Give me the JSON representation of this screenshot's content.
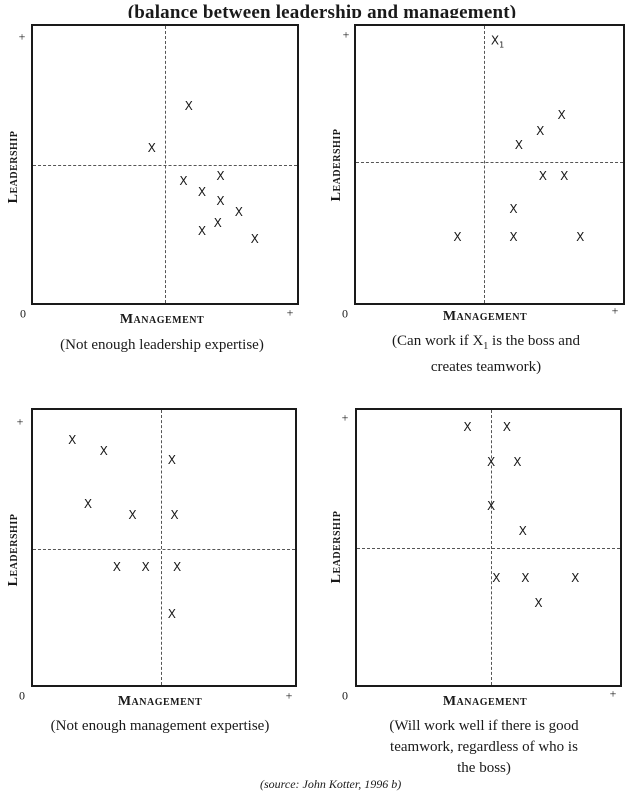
{
  "title": "(balance between leadership and management)",
  "source": "(source: John Kotter, 1996 b)",
  "axes": {
    "y_label": "Leadership",
    "x_label": "Management",
    "origin": "0",
    "plus": "+"
  },
  "point_mark": "X",
  "boss_subscript": "1",
  "panels": [
    {
      "caption": [
        "(Not enough leadership expertise)"
      ],
      "points": [
        {
          "mx": 0.45,
          "ld": 0.56
        },
        {
          "mx": 0.59,
          "ld": 0.71
        },
        {
          "mx": 0.57,
          "ld": 0.44
        },
        {
          "mx": 0.64,
          "ld": 0.4
        },
        {
          "mx": 0.71,
          "ld": 0.46
        },
        {
          "mx": 0.71,
          "ld": 0.37
        },
        {
          "mx": 0.78,
          "ld": 0.33
        },
        {
          "mx": 0.7,
          "ld": 0.29
        },
        {
          "mx": 0.64,
          "ld": 0.26
        },
        {
          "mx": 0.84,
          "ld": 0.23
        }
      ]
    },
    {
      "caption": [
        "(Can work if X",
        "1",
        " is the boss and",
        "creates teamwork)"
      ],
      "points": [
        {
          "mx": 0.53,
          "ld": 0.94,
          "boss": true
        },
        {
          "mx": 0.77,
          "ld": 0.68
        },
        {
          "mx": 0.69,
          "ld": 0.62
        },
        {
          "mx": 0.61,
          "ld": 0.57
        },
        {
          "mx": 0.7,
          "ld": 0.46
        },
        {
          "mx": 0.78,
          "ld": 0.46
        },
        {
          "mx": 0.59,
          "ld": 0.34
        },
        {
          "mx": 0.38,
          "ld": 0.24
        },
        {
          "mx": 0.59,
          "ld": 0.24
        },
        {
          "mx": 0.84,
          "ld": 0.24
        }
      ]
    },
    {
      "caption": [
        "(Not enough management expertise)"
      ],
      "points": [
        {
          "mx": 0.15,
          "ld": 0.89
        },
        {
          "mx": 0.27,
          "ld": 0.85
        },
        {
          "mx": 0.53,
          "ld": 0.82
        },
        {
          "mx": 0.21,
          "ld": 0.66
        },
        {
          "mx": 0.38,
          "ld": 0.62
        },
        {
          "mx": 0.54,
          "ld": 0.62
        },
        {
          "mx": 0.32,
          "ld": 0.43
        },
        {
          "mx": 0.43,
          "ld": 0.43
        },
        {
          "mx": 0.55,
          "ld": 0.43
        },
        {
          "mx": 0.53,
          "ld": 0.26
        }
      ]
    },
    {
      "caption": [
        "(Will work well if there is good",
        "teamwork, regardless of who is",
        "the boss)"
      ],
      "points": [
        {
          "mx": 0.42,
          "ld": 0.94
        },
        {
          "mx": 0.57,
          "ld": 0.94
        },
        {
          "mx": 0.51,
          "ld": 0.81
        },
        {
          "mx": 0.61,
          "ld": 0.81
        },
        {
          "mx": 0.51,
          "ld": 0.65
        },
        {
          "mx": 0.63,
          "ld": 0.56
        },
        {
          "mx": 0.53,
          "ld": 0.39
        },
        {
          "mx": 0.64,
          "ld": 0.39
        },
        {
          "mx": 0.83,
          "ld": 0.39
        },
        {
          "mx": 0.69,
          "ld": 0.3
        }
      ]
    }
  ]
}
